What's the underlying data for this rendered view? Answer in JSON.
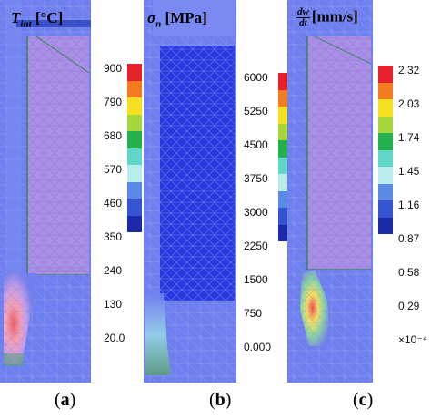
{
  "panels": [
    {
      "id": "a",
      "title_symbol": "T",
      "title_sub": "int",
      "title_unit": "[°C]",
      "colorbar_ticks": [
        "900",
        "790",
        "680",
        "570",
        "460",
        "350",
        "240",
        "130",
        "20.0"
      ],
      "caption": "a"
    },
    {
      "id": "b",
      "title_symbol": "σ",
      "title_sub": "n",
      "title_unit": "[MPa]",
      "colorbar_ticks": [
        "6000",
        "5250",
        "4500",
        "3750",
        "3000",
        "2250",
        "1500",
        "750",
        "0.000"
      ],
      "caption": "b"
    },
    {
      "id": "c",
      "title_num": "dw",
      "title_den": "dt",
      "title_unit": "[mm/s]",
      "colorbar_ticks": [
        "2.32",
        "2.03",
        "1.74",
        "1.45",
        "1.16",
        "0.87",
        "0.58",
        "0.29",
        "×10⁻⁴"
      ],
      "caption": "c"
    }
  ],
  "colorbar_colors": [
    "#e8202a",
    "#f47b20",
    "#f5e020",
    "#a5d63a",
    "#22b14c",
    "#60d6c8",
    "#b8ecec",
    "#5a8ae6",
    "#3454d0",
    "#1a2aa8"
  ]
}
